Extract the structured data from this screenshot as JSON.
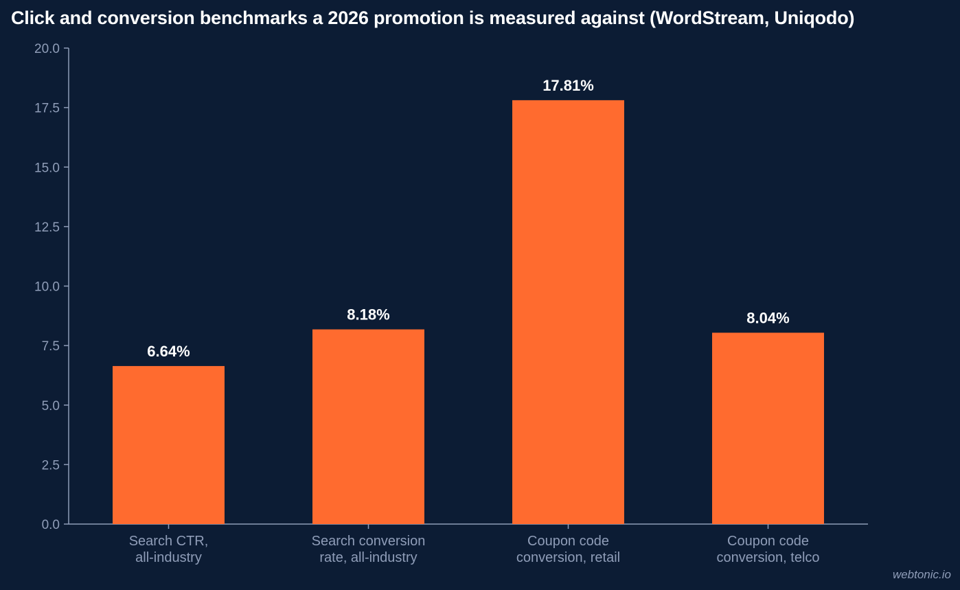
{
  "chart_data": {
    "type": "bar",
    "title": "Click and conversion benchmarks a 2026 promotion is measured against (WordStream, Uniqodo)",
    "categories": [
      [
        "Search CTR,",
        "all-industry"
      ],
      [
        "Search conversion",
        "rate, all-industry"
      ],
      [
        "Coupon code",
        "conversion, retail"
      ],
      [
        "Coupon code",
        "conversion, telco"
      ]
    ],
    "values": [
      6.64,
      8.18,
      17.81,
      8.04
    ],
    "data_labels": [
      "6.64%",
      "8.18%",
      "17.81%",
      "8.04%"
    ],
    "ylim": [
      0,
      20
    ],
    "yticks": [
      "0.0",
      "2.5",
      "5.0",
      "7.5",
      "10.0",
      "12.5",
      "15.0",
      "17.5",
      "20.0"
    ],
    "xlabel": "",
    "ylabel": "",
    "grid": false,
    "colors": {
      "background": "#0c1c34",
      "bar": "#ff6b2f",
      "axis": "#8f9db8",
      "text": "#ffffff"
    }
  },
  "watermark": "webtonic.io"
}
